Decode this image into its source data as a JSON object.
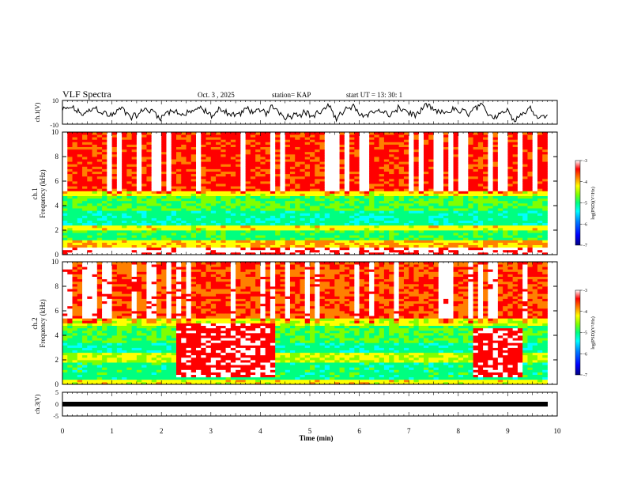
{
  "header": {
    "title": "VLF Spectra",
    "date": "Oct. 3 , 2025",
    "station": "station= KAP",
    "start": "start UT = 13: 30: 1"
  },
  "colors": {
    "spectrum": [
      "#000080",
      "#0000ff",
      "#0080ff",
      "#00ffff",
      "#00ff80",
      "#80ff00",
      "#ffff00",
      "#ff8000",
      "#ff0000",
      "#ffffff"
    ],
    "waveform": "#000000",
    "frame": "#000000"
  },
  "chart_data": [
    {
      "type": "line",
      "id": "ch1-waveform",
      "ylabel": "ch.1(V)",
      "ylim": [
        -10,
        10
      ],
      "yticks": [
        "10",
        "-10"
      ],
      "xlim": [
        0,
        10
      ],
      "description_values": "noisy broadband voltage oscillating roughly between -7 and +9 V across the full 10 min record"
    },
    {
      "type": "heatmap",
      "id": "ch1-spectrogram",
      "ylabel": "ch.1\nFrequency (kHz)",
      "ylabel_line1": "ch.1",
      "ylabel_line2": "Frequency (kHz)",
      "ylim": [
        0,
        10
      ],
      "yticks": [
        "0",
        "2",
        "4",
        "6",
        "8",
        "10"
      ],
      "xlim": [
        0,
        9.8
      ],
      "colorbar": {
        "label": "log(PSD)(V²/Hz)",
        "range": [
          -7,
          -3
        ],
        "ticks": [
          "-3",
          "-4",
          "-5",
          "-6",
          "-7"
        ]
      },
      "bands": [
        {
          "f0": 0.0,
          "f1": 0.7,
          "level": -3.3
        },
        {
          "f0": 0.7,
          "f1": 1.2,
          "level": -4.2
        },
        {
          "f0": 1.2,
          "f1": 2.0,
          "level": -5.1
        },
        {
          "f0": 2.0,
          "f1": 2.5,
          "level": -4.4
        },
        {
          "f0": 2.5,
          "f1": 3.6,
          "level": -5.3
        },
        {
          "f0": 3.6,
          "f1": 4.9,
          "level": -5.0
        },
        {
          "f0": 4.9,
          "f1": 5.3,
          "level": -4.4
        },
        {
          "f0": 5.3,
          "f1": 10.0,
          "level": -3.7
        }
      ]
    },
    {
      "type": "heatmap",
      "id": "ch2-spectrogram",
      "ylabel": "ch.2\nFrequency (kHz)",
      "ylabel_line1": "ch.2",
      "ylabel_line2": "Frequency (kHz)",
      "ylim": [
        0,
        10
      ],
      "yticks": [
        "0",
        "2",
        "4",
        "6",
        "8",
        "10"
      ],
      "xlim": [
        0,
        9.8
      ],
      "colorbar": {
        "label": "log(PSD)(V²/Hz)",
        "range": [
          -7,
          -3
        ],
        "ticks": [
          "-3",
          "-4",
          "-5",
          "-6",
          "-7"
        ]
      },
      "bands": [
        {
          "f0": 0.0,
          "f1": 0.5,
          "level": -4.4
        },
        {
          "f0": 0.5,
          "f1": 1.9,
          "level": -5.2
        },
        {
          "f0": 1.9,
          "f1": 2.6,
          "level": -4.6
        },
        {
          "f0": 2.6,
          "f1": 3.5,
          "level": -5.3
        },
        {
          "f0": 3.5,
          "f1": 4.8,
          "level": -5.0
        },
        {
          "f0": 4.8,
          "f1": 5.5,
          "level": -4.5
        },
        {
          "f0": 5.5,
          "f1": 10.0,
          "level": -3.8
        }
      ],
      "bursts": [
        {
          "t0": 2.25,
          "t1": 4.25,
          "f0": 0.6,
          "f1": 5.0,
          "level": -3.5
        },
        {
          "t0": 8.3,
          "t1": 9.3,
          "f0": 0.6,
          "f1": 4.7,
          "level": -3.5
        }
      ]
    },
    {
      "type": "line",
      "id": "ch3-waveform",
      "ylabel": "ch.3(V)",
      "ylim": [
        -5,
        5
      ],
      "yticks": [
        "5",
        "0",
        "-5"
      ],
      "xlim": [
        0,
        10
      ],
      "level_range": [
        -0.8,
        0.3
      ],
      "xlabel": "Time (min)",
      "xticks": [
        "0",
        "1",
        "2",
        "3",
        "4",
        "5",
        "6",
        "7",
        "8",
        "9",
        "10"
      ]
    }
  ]
}
